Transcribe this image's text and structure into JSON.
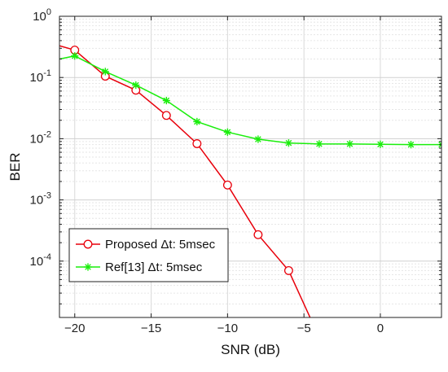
{
  "chart_data": {
    "type": "line",
    "xlabel": "SNR (dB)",
    "ylabel": "BER",
    "xlim": [
      -21,
      4
    ],
    "ylim": [
      1.2e-05,
      1
    ],
    "yscale": "log",
    "grid": true,
    "legend_position": "bottom-left",
    "x_ticks": [
      -20,
      -15,
      -10,
      -5,
      0
    ],
    "x_tick_labels": [
      "−20",
      "−15",
      "−10",
      "−5",
      "0"
    ],
    "y_ticks": [
      {
        "value": 1,
        "base": "10",
        "exp": "0"
      },
      {
        "value": 0.1,
        "base": "10",
        "exp": "-1"
      },
      {
        "value": 0.01,
        "base": "10",
        "exp": "-2"
      },
      {
        "value": 0.001,
        "base": "10",
        "exp": "-3"
      },
      {
        "value": 0.0001,
        "base": "10",
        "exp": "-4"
      }
    ],
    "series": [
      {
        "name": "Proposed Δt: 5msec",
        "color": "#e8000b",
        "marker": "circle",
        "x": [
          -21,
          -20,
          -18,
          -16,
          -14,
          -12,
          -10,
          -8,
          -6,
          -4.6
        ],
        "y": [
          0.33,
          0.28,
          0.105,
          0.062,
          0.024,
          0.0083,
          0.00175,
          0.00027,
          7e-05,
          1.2e-05
        ],
        "marker_x": [
          -20,
          -18,
          -16,
          -14,
          -12,
          -10,
          -8,
          -6
        ]
      },
      {
        "name": "Ref[13] Δt: 5msec",
        "color": "#1aee0c",
        "marker": "asterisk",
        "x": [
          -21,
          -20,
          -18,
          -16,
          -14,
          -12,
          -10,
          -8,
          -6,
          -4,
          -2,
          0,
          2,
          4
        ],
        "y": [
          0.2,
          0.225,
          0.125,
          0.075,
          0.042,
          0.019,
          0.0128,
          0.0098,
          0.0085,
          0.0082,
          0.0082,
          0.0081,
          0.008,
          0.008
        ],
        "marker_x": [
          -20,
          -18,
          -16,
          -14,
          -12,
          -10,
          -8,
          -6,
          -4,
          -2,
          0,
          2,
          4
        ]
      }
    ]
  }
}
